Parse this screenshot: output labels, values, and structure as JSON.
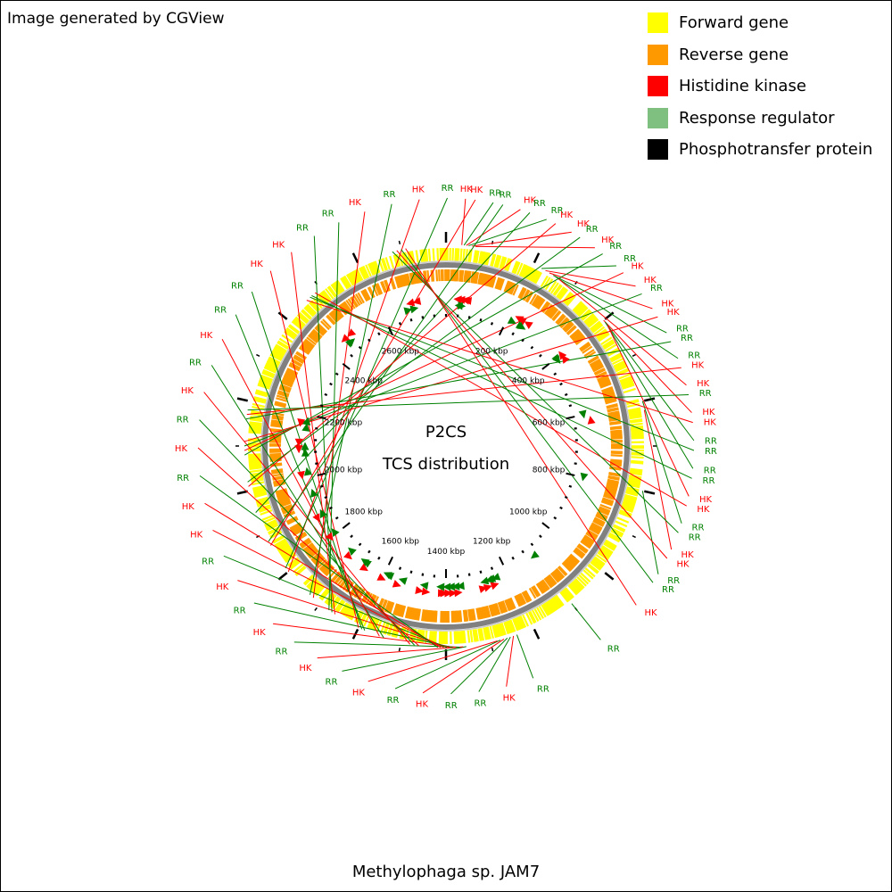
{
  "credit": "Image generated by CGView",
  "center_title": "P2CS",
  "center_subtitle": "TCS distribution",
  "organism": "Methylophaga sp. JAM7",
  "legend": [
    {
      "label": "Forward gene",
      "color": "#ffff00"
    },
    {
      "label": "Reverse gene",
      "color": "#ff9900"
    },
    {
      "label": "Histidine kinase",
      "color": "#ff0000"
    },
    {
      "label": "Response regulator",
      "color": "#7fbf7f"
    },
    {
      "label": "Phosphotransfer protein",
      "color": "#000000"
    }
  ],
  "colors": {
    "hk": "#ff0000",
    "rr": "#008000",
    "backbone": "#808080",
    "ticks": "#000000"
  },
  "map": {
    "genome_length_kbp": 2800,
    "scale_labels": [
      "200 kbp",
      "400 kbp",
      "600 kbp",
      "800 kbp",
      "1000 kbp",
      "1200 kbp",
      "1400 kbp",
      "1600 kbp",
      "1800 kbp",
      "2000 kbp",
      "2200 kbp",
      "2400 kbp",
      "2600 kbp"
    ],
    "scale_kbp": [
      200,
      400,
      600,
      800,
      1000,
      1200,
      1400,
      1600,
      1800,
      2000,
      2200,
      2400,
      2600
    ],
    "features": [
      {
        "label": "HK",
        "kbp": 35,
        "strand": "-"
      },
      {
        "label": "RR",
        "kbp": 40,
        "strand": "-"
      },
      {
        "label": "HK",
        "kbp": 45,
        "strand": "-"
      },
      {
        "label": "RR",
        "kbp": 50,
        "strand": "+"
      },
      {
        "label": "HK",
        "kbp": 58,
        "strand": "-"
      },
      {
        "label": "HK",
        "kbp": 65,
        "strand": "-"
      },
      {
        "label": "RR",
        "kbp": 220,
        "strand": "+"
      },
      {
        "label": "HK",
        "kbp": 230,
        "strand": "-"
      },
      {
        "label": "HK",
        "kbp": 240,
        "strand": "-"
      },
      {
        "label": "RR",
        "kbp": 250,
        "strand": "+"
      },
      {
        "label": "RR",
        "kbp": 255,
        "strand": "+"
      },
      {
        "label": "HK",
        "kbp": 262,
        "strand": "-"
      },
      {
        "label": "HK",
        "kbp": 400,
        "strand": "-"
      },
      {
        "label": "RR",
        "kbp": 405,
        "strand": "+"
      },
      {
        "label": "RR",
        "kbp": 410,
        "strand": "+"
      },
      {
        "label": "HK",
        "kbp": 415,
        "strand": "-"
      },
      {
        "label": "RR",
        "kbp": 600,
        "strand": "+"
      },
      {
        "label": "HK",
        "kbp": 620,
        "strand": "-"
      },
      {
        "label": "RR",
        "kbp": 800,
        "strand": "+"
      },
      {
        "label": "RR",
        "kbp": 1100,
        "strand": "+"
      },
      {
        "label": "RR",
        "kbp": 1240,
        "strand": "+"
      },
      {
        "label": "HK",
        "kbp": 1248,
        "strand": "-"
      },
      {
        "label": "RR",
        "kbp": 1255,
        "strand": "+"
      },
      {
        "label": "RR",
        "kbp": 1262,
        "strand": "+"
      },
      {
        "label": "HK",
        "kbp": 1270,
        "strand": "-"
      },
      {
        "label": "RR",
        "kbp": 1278,
        "strand": "+"
      },
      {
        "label": "HK",
        "kbp": 1285,
        "strand": "-"
      },
      {
        "label": "RR",
        "kbp": 1355,
        "strand": "+"
      },
      {
        "label": "HK",
        "kbp": 1362,
        "strand": "-"
      },
      {
        "label": "RR",
        "kbp": 1370,
        "strand": "+"
      },
      {
        "label": "HK",
        "kbp": 1378,
        "strand": "-"
      },
      {
        "label": "RR",
        "kbp": 1385,
        "strand": "+"
      },
      {
        "label": "HK",
        "kbp": 1392,
        "strand": "-"
      },
      {
        "label": "RR",
        "kbp": 1398,
        "strand": "+"
      },
      {
        "label": "HK",
        "kbp": 1405,
        "strand": "-"
      },
      {
        "label": "HK",
        "kbp": 1412,
        "strand": "-"
      },
      {
        "label": "RR",
        "kbp": 1418,
        "strand": "+"
      },
      {
        "label": "HK",
        "kbp": 1460,
        "strand": "-"
      },
      {
        "label": "RR",
        "kbp": 1470,
        "strand": "+"
      },
      {
        "label": "HK",
        "kbp": 1480,
        "strand": "-"
      },
      {
        "label": "RR",
        "kbp": 1540,
        "strand": "+"
      },
      {
        "label": "HK",
        "kbp": 1550,
        "strand": "-"
      },
      {
        "label": "RR",
        "kbp": 1585,
        "strand": "+"
      },
      {
        "label": "RR",
        "kbp": 1592,
        "strand": "+"
      },
      {
        "label": "HK",
        "kbp": 1600,
        "strand": "-"
      },
      {
        "label": "HK",
        "kbp": 1660,
        "strand": "-"
      },
      {
        "label": "RR",
        "kbp": 1668,
        "strand": "+"
      },
      {
        "label": "RR",
        "kbp": 1676,
        "strand": "+"
      },
      {
        "label": "HK",
        "kbp": 1720,
        "strand": "-"
      },
      {
        "label": "RR",
        "kbp": 1730,
        "strand": "+"
      },
      {
        "label": "HK",
        "kbp": 1800,
        "strand": "-"
      },
      {
        "label": "RR",
        "kbp": 1810,
        "strand": "+"
      },
      {
        "label": "HK",
        "kbp": 1870,
        "strand": "-"
      },
      {
        "label": "RR",
        "kbp": 1880,
        "strand": "+"
      },
      {
        "label": "RR",
        "kbp": 1950,
        "strand": "+"
      },
      {
        "label": "HK",
        "kbp": 2010,
        "strand": "-"
      },
      {
        "label": "RR",
        "kbp": 2020,
        "strand": "+"
      },
      {
        "label": "RR",
        "kbp": 2080,
        "strand": "+"
      },
      {
        "label": "HK",
        "kbp": 2090,
        "strand": "-"
      },
      {
        "label": "RR",
        "kbp": 2100,
        "strand": "+"
      },
      {
        "label": "HK",
        "kbp": 2110,
        "strand": "-"
      },
      {
        "label": "RR",
        "kbp": 2160,
        "strand": "+"
      },
      {
        "label": "HK",
        "kbp": 2170,
        "strand": "-"
      },
      {
        "label": "RR",
        "kbp": 2180,
        "strand": "+"
      },
      {
        "label": "HK",
        "kbp": 2460,
        "strand": "-"
      },
      {
        "label": "RR",
        "kbp": 2470,
        "strand": "+"
      },
      {
        "label": "RR",
        "kbp": 2475,
        "strand": "+"
      },
      {
        "label": "HK",
        "kbp": 2485,
        "strand": "-"
      },
      {
        "label": "RR",
        "kbp": 2680,
        "strand": "+"
      },
      {
        "label": "HK",
        "kbp": 2690,
        "strand": "-"
      },
      {
        "label": "RR",
        "kbp": 2700,
        "strand": "+"
      },
      {
        "label": "HK",
        "kbp": 2710,
        "strand": "-"
      }
    ]
  }
}
